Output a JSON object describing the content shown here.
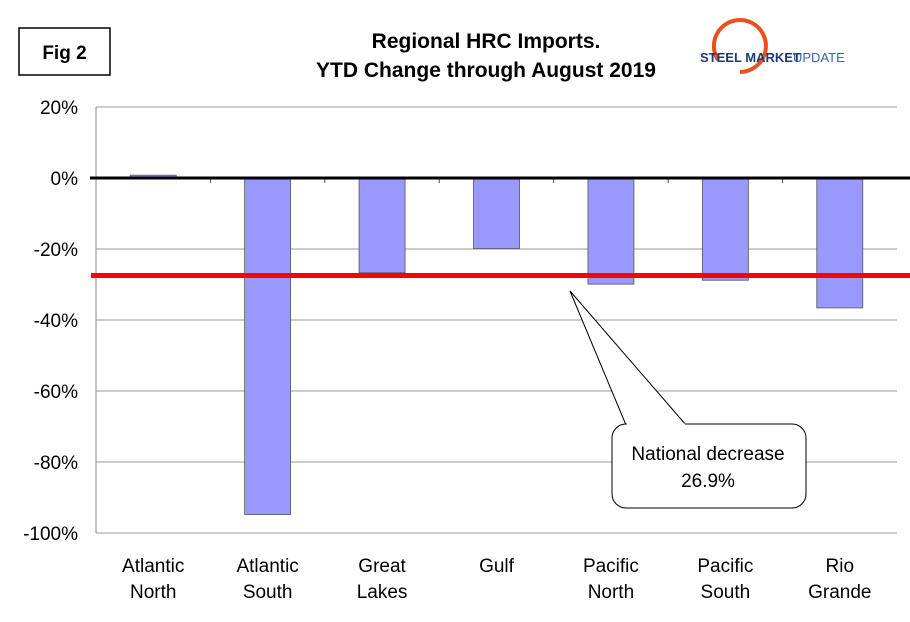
{
  "fig_label": "Fig 2",
  "logo": {
    "text_bold": "STEEL MARKET",
    "text_light": "UPDATE",
    "color_dark": "#1e3a7b",
    "color_light": "#3a64b0",
    "arc_color": "#e8501c"
  },
  "annotation": {
    "line1": "National decrease",
    "line2": "26.9%"
  },
  "chart_data": {
    "type": "bar",
    "title": [
      "Regional HRC Imports.",
      "YTD Change through August 2019"
    ],
    "categories": [
      [
        "Atlantic",
        "North"
      ],
      [
        "Atlantic",
        "South"
      ],
      [
        "Great",
        "Lakes"
      ],
      [
        "Gulf"
      ],
      [
        "Pacific",
        "North"
      ],
      [
        "Pacific",
        "South"
      ],
      [
        "Rio",
        "Grande"
      ]
    ],
    "values": [
      0.8,
      -94.8,
      -26.7,
      -19.9,
      -29.9,
      -28.8,
      -36.6
    ],
    "ylim": [
      -100,
      20
    ],
    "yticks": [
      20,
      0,
      -20,
      -40,
      -60,
      -80,
      -100
    ],
    "ytick_labels": [
      "20%",
      "0%",
      "-20%",
      "-40%",
      "-60%",
      "-80%",
      "-100%"
    ],
    "reference_line": {
      "label": "National decrease",
      "value": -26.9,
      "color": "#ff0000"
    },
    "bar_color": "#9999ff",
    "grid": true,
    "xlabel": "",
    "ylabel": ""
  }
}
